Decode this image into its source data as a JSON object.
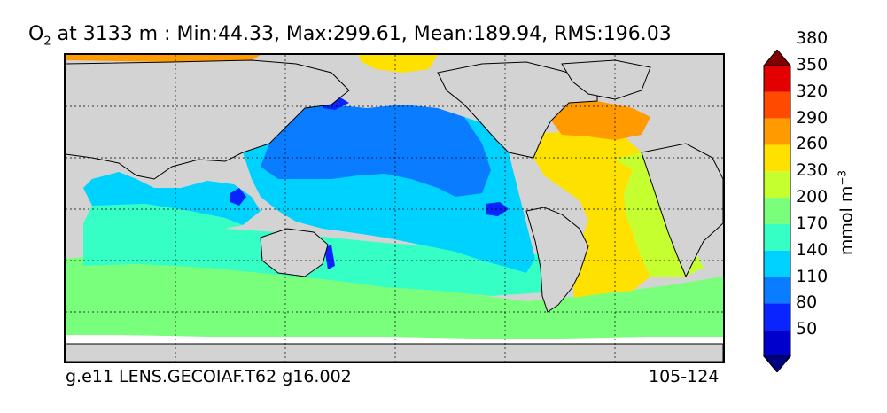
{
  "title": {
    "species": "O",
    "species_sub": "2",
    "text": " at 3133 m : Min:44.33, Max:299.61, Mean:189.94, RMS:196.03"
  },
  "footer": {
    "left": "g.e11 LENS.GECOIAF.T62 g16.002",
    "right": "105-124"
  },
  "colorbar": {
    "label": "mmol m",
    "label_sup": "−3",
    "ticks": [
      "50",
      "80",
      "110",
      "140",
      "170",
      "200",
      "230",
      "260",
      "290",
      "320",
      "350",
      "380"
    ],
    "colors": [
      "#000080",
      "#0000cd",
      "#0a24ff",
      "#0a7cff",
      "#00d2ff",
      "#36ffc6",
      "#7aff7c",
      "#c6ff30",
      "#ffe100",
      "#ff9a00",
      "#ff4a00",
      "#e30000",
      "#800000"
    ]
  },
  "map": {
    "land_color": "#d3d3d3",
    "missing_color": "#ffffff",
    "gridlines": "dashed"
  }
}
